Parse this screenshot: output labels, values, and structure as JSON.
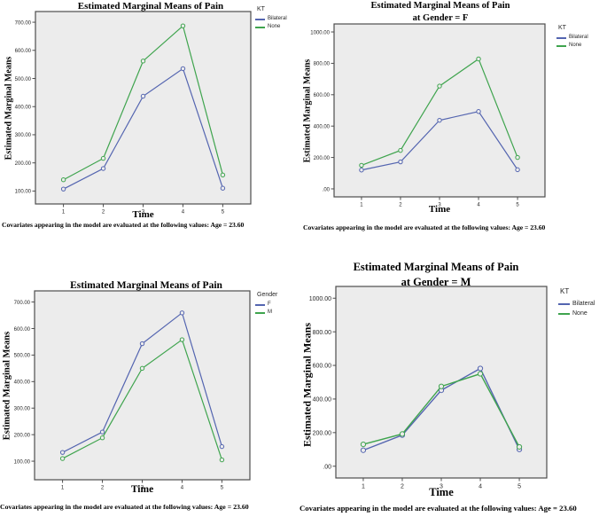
{
  "colors": {
    "series_blue": "#5465b0",
    "series_green": "#3fa44e",
    "plot_bg": "#ececec",
    "frame": "#4d4d4d",
    "tick_text": "#262626"
  },
  "chart_data": [
    {
      "type": "line",
      "title": "Estimated Marginal Means of Pain",
      "subtitle": "",
      "xlabel": "Time",
      "ylabel": "Estimated Marginal Means",
      "footnote": "Covariates appearing in the model are evaluated at the following values: Age = 23.60",
      "legend_title": "KT",
      "legend_position": "right-top",
      "grid": false,
      "x": [
        1,
        2,
        3,
        4,
        5
      ],
      "x_tick_labels": [
        "1",
        "2",
        "3",
        "4",
        "5"
      ],
      "yticks": [
        100,
        200,
        300,
        400,
        500,
        600,
        700
      ],
      "ytick_labels": [
        "100.00",
        "200.00",
        "300.00",
        "400.00",
        "500.00",
        "600.00",
        "700.00"
      ],
      "ylim": [
        54,
        738
      ],
      "series": [
        {
          "name": "Bilateral",
          "color": "#5465b0",
          "values": [
            107,
            180,
            437,
            535,
            110
          ]
        },
        {
          "name": "None",
          "color": "#3fa44e",
          "values": [
            140,
            216,
            562,
            687,
            157
          ]
        }
      ]
    },
    {
      "type": "line",
      "title": "Estimated Marginal Means of Pain",
      "subtitle": "at Gender = F",
      "xlabel": "Time",
      "ylabel": "Estimated Marginal Means",
      "footnote": "Covariates appearing in the model are evaluated at the following values: Age = 23.60",
      "legend_title": "KT",
      "legend_position": "right-top",
      "grid": false,
      "x": [
        1,
        2,
        3,
        4,
        5
      ],
      "x_tick_labels": [
        "1",
        "2",
        "3",
        "4",
        "5"
      ],
      "yticks": [
        0,
        200,
        400,
        600,
        800,
        1000
      ],
      "ytick_labels": [
        ".00",
        "200.00",
        "400.00",
        "600.00",
        "800.00",
        "1000.00"
      ],
      "ylim": [
        -51,
        1051
      ],
      "series": [
        {
          "name": "Bilateral",
          "color": "#5465b0",
          "values": [
            120,
            172,
            437,
            493,
            122
          ]
        },
        {
          "name": "None",
          "color": "#3fa44e",
          "values": [
            150,
            245,
            655,
            828,
            200
          ]
        }
      ]
    },
    {
      "type": "line",
      "title": "Estimated Marginal Means of Pain",
      "subtitle": "",
      "xlabel": "Time",
      "ylabel": "Estimated Marginal Means",
      "footnote": "Covariates appearing in the model are evaluated at the following values: Age = 23.60",
      "legend_title": "Gender",
      "legend_position": "right-top",
      "grid": false,
      "x": [
        1,
        2,
        3,
        4,
        5
      ],
      "x_tick_labels": [
        "1",
        "2",
        "3",
        "4",
        "5"
      ],
      "yticks": [
        100,
        200,
        300,
        400,
        500,
        600,
        700
      ],
      "ytick_labels": [
        "100.00",
        "200.00",
        "300.00",
        "400.00",
        "500.00",
        "600.00",
        "700.00"
      ],
      "ylim": [
        30,
        742
      ],
      "series": [
        {
          "name": "F",
          "color": "#5465b0",
          "values": [
            133,
            210,
            543,
            659,
            155
          ]
        },
        {
          "name": "M",
          "color": "#3fa44e",
          "values": [
            110,
            188,
            450,
            558,
            105
          ]
        }
      ]
    },
    {
      "type": "line",
      "title": "Estimated Marginal Means of Pain",
      "subtitle": "at Gender = M",
      "xlabel": "Time",
      "ylabel": "Estimated Marginal Means",
      "footnote": "Covariates appearing in the model are evaluated at the following values: Age = 23.60",
      "legend_title": "KT",
      "legend_position": "right-top",
      "grid": false,
      "x": [
        1,
        2,
        3,
        4,
        5
      ],
      "x_tick_labels": [
        "1",
        "2",
        "3",
        "4",
        "5"
      ],
      "yticks": [
        0,
        200,
        400,
        600,
        800,
        1000
      ],
      "ytick_labels": [
        ".00",
        "200.00",
        "400.00",
        "600.00",
        "800.00",
        "1000.00"
      ],
      "ylim": [
        -70,
        1070
      ],
      "series": [
        {
          "name": "Bilateral",
          "color": "#5465b0",
          "values": [
            95,
            185,
            452,
            582,
            100
          ]
        },
        {
          "name": "None",
          "color": "#3fa44e",
          "values": [
            130,
            192,
            475,
            550,
            115
          ]
        }
      ]
    }
  ]
}
